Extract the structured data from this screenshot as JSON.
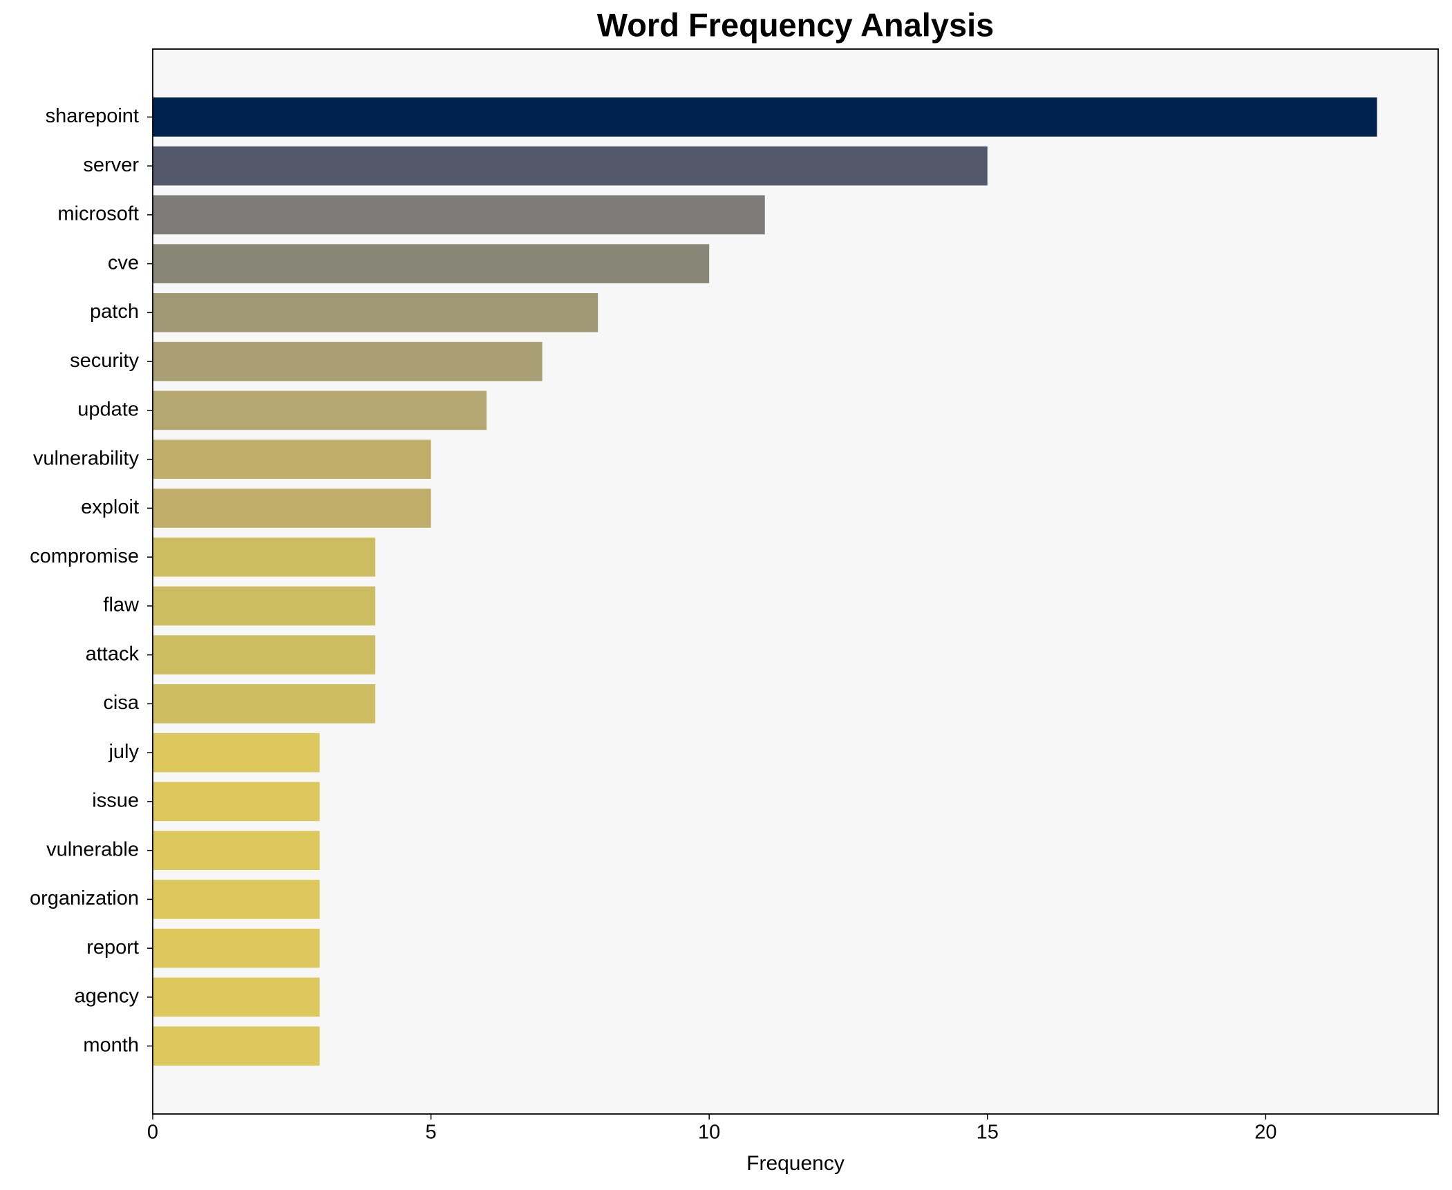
{
  "chart_data": {
    "type": "barh",
    "title": "Word Frequency Analysis",
    "x_label": "Frequency",
    "categories": [
      "sharepoint",
      "server",
      "microsoft",
      "cve",
      "patch",
      "security",
      "update",
      "vulnerability",
      "exploit",
      "compromise",
      "flaw",
      "attack",
      "cisa",
      "july",
      "issue",
      "vulnerable",
      "organization",
      "report",
      "agency",
      "month"
    ],
    "values": [
      22,
      15,
      11,
      10,
      8,
      7,
      6,
      5,
      5,
      4,
      4,
      4,
      4,
      3,
      3,
      3,
      3,
      3,
      3,
      3
    ],
    "colors": [
      "#00224e",
      "#53596b",
      "#7c7b78",
      "#888777",
      "#a09775",
      "#aa9e74",
      "#b5a771",
      "#c0ae6a",
      "#c0ae6a",
      "#cdbd62",
      "#cdbd62",
      "#cdbd62",
      "#cebd63",
      "#dcc85c",
      "#dcc85c",
      "#dcc85c",
      "#dcc85c",
      "#dcc85c",
      "#dcc85c",
      "#dcc85c"
    ],
    "xlim": [
      0,
      23.1
    ],
    "xticks": [
      0,
      5,
      10,
      15,
      20
    ],
    "grid": false
  }
}
